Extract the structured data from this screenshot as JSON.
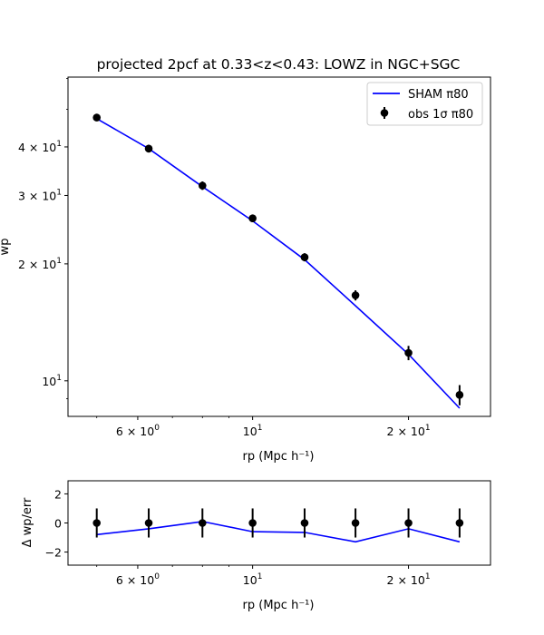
{
  "chart_data": [
    {
      "type": "scatter",
      "title": "projected 2pcf at 0.33<z<0.43: LOWZ in NGC+SGC",
      "xlabel": "rp (Mpc h⁻¹)",
      "ylabel": "wp",
      "xscale": "log",
      "yscale": "log",
      "xlim": [
        4.4,
        28.8
      ],
      "ylim": [
        8.1,
        60.5
      ],
      "xticks": [
        {
          "value": 6,
          "label_base": "6 × 10",
          "label_exp": "0"
        },
        {
          "value": 10,
          "label_base": "10",
          "label_exp": "1"
        },
        {
          "value": 20,
          "label_base": "2 × 10",
          "label_exp": "1"
        }
      ],
      "yticks": [
        {
          "value": 10,
          "label_base": "10",
          "label_exp": "1"
        },
        {
          "value": 20,
          "label_base": "2 × 10",
          "label_exp": "1"
        },
        {
          "value": 30,
          "label_base": "3 × 10",
          "label_exp": "1"
        },
        {
          "value": 40,
          "label_base": "4 × 10",
          "label_exp": "1"
        }
      ],
      "grid": false,
      "legend_position": "top-right",
      "x": [
        5.0,
        6.3,
        8.0,
        10.0,
        12.6,
        15.8,
        20.0,
        25.1
      ],
      "series": [
        {
          "name": "SHAM π80",
          "kind": "line",
          "color": "#0000ff",
          "values": [
            47.3,
            39.6,
            31.6,
            25.8,
            20.5,
            15.6,
            11.7,
            8.5
          ]
        },
        {
          "name": "obs 1σ π80",
          "kind": "errorbar",
          "color": "#000000",
          "values": [
            47.6,
            39.6,
            31.8,
            26.2,
            20.8,
            16.6,
            11.8,
            9.2
          ],
          "errors": [
            1.0,
            0.9,
            0.8,
            0.6,
            0.5,
            0.5,
            0.5,
            0.55
          ]
        }
      ]
    },
    {
      "type": "scatter",
      "title": "",
      "xlabel": "rp (Mpc h⁻¹)",
      "ylabel": "Δ wp/err",
      "xscale": "log",
      "xlim": [
        4.4,
        28.8
      ],
      "ylim": [
        -2.9,
        2.9
      ],
      "xticks": [
        {
          "value": 6,
          "label_base": "6 × 10",
          "label_exp": "0"
        },
        {
          "value": 10,
          "label_base": "10",
          "label_exp": "1"
        },
        {
          "value": 20,
          "label_base": "2 × 10",
          "label_exp": "1"
        }
      ],
      "yticks": [
        {
          "value": -2,
          "label": "−2"
        },
        {
          "value": 0,
          "label": "0"
        },
        {
          "value": 2,
          "label": "2"
        }
      ],
      "x": [
        5.0,
        6.3,
        8.0,
        10.0,
        12.6,
        15.8,
        20.0,
        25.1
      ],
      "series": [
        {
          "kind": "line",
          "color": "#0000ff",
          "values": [
            -0.8,
            -0.4,
            0.1,
            -0.6,
            -0.65,
            -1.3,
            -0.4,
            -1.3
          ]
        },
        {
          "kind": "errorbar",
          "color": "#000000",
          "values": [
            0,
            0,
            0,
            0,
            0,
            0,
            0,
            0
          ],
          "errors": [
            1,
            1,
            1,
            1,
            1,
            1,
            1,
            1
          ]
        }
      ]
    }
  ]
}
